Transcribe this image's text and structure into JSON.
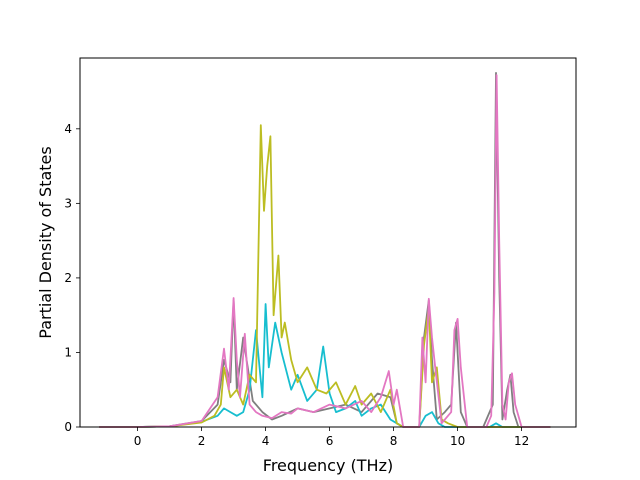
{
  "chart_data": {
    "type": "line",
    "title": "",
    "xlabel": "Frequency (THz)",
    "ylabel": "Partial Density of States",
    "xlim": [
      -1.8,
      13.7
    ],
    "ylim": [
      0,
      4.95
    ],
    "xticks": [
      0,
      2,
      4,
      6,
      8,
      10,
      12
    ],
    "yticks": [
      0,
      1,
      2,
      3,
      4
    ],
    "grid": false,
    "legend": "none",
    "series": [
      {
        "color": "#7f7f7f",
        "x": [
          -1.2,
          0,
          1.0,
          2.0,
          2.5,
          2.7,
          2.9,
          3.0,
          3.1,
          3.3,
          3.6,
          3.9,
          4.2,
          4.5,
          5.0,
          5.5,
          6.0,
          6.5,
          7.0,
          7.5,
          7.9,
          8.1,
          8.3,
          8.8,
          8.95,
          9.1,
          9.2,
          9.35,
          9.6,
          9.8,
          9.95,
          10.1,
          10.3,
          10.8,
          11.1,
          11.2,
          11.3,
          11.4,
          11.55,
          11.65,
          11.75,
          11.9,
          12.5,
          12.9
        ],
        "y": [
          0,
          0,
          0.01,
          0.08,
          0.3,
          0.9,
          0.6,
          1.7,
          0.5,
          1.2,
          0.35,
          0.2,
          0.1,
          0.15,
          0.25,
          0.2,
          0.25,
          0.3,
          0.2,
          0.45,
          0.4,
          0.05,
          0,
          0,
          1.2,
          1.7,
          0.9,
          0.1,
          0.2,
          0.3,
          1.4,
          0.2,
          0,
          0,
          0.3,
          4.75,
          2.0,
          0.1,
          0.5,
          0.7,
          0.2,
          0,
          0,
          0
        ]
      },
      {
        "color": "#17becf",
        "x": [
          -1.2,
          0,
          1.0,
          2.0,
          2.5,
          2.7,
          2.9,
          3.1,
          3.3,
          3.5,
          3.7,
          3.9,
          4.0,
          4.1,
          4.3,
          4.5,
          4.8,
          5.0,
          5.3,
          5.6,
          5.8,
          6.0,
          6.2,
          6.5,
          6.8,
          7.0,
          7.3,
          7.6,
          7.9,
          8.1,
          8.3,
          8.8,
          9.0,
          9.2,
          9.4,
          9.6,
          10.0,
          10.5,
          11.0,
          11.2,
          11.4,
          12.0,
          12.9
        ],
        "y": [
          0,
          0,
          0.01,
          0.07,
          0.15,
          0.25,
          0.2,
          0.15,
          0.2,
          0.5,
          1.3,
          0.4,
          1.65,
          0.8,
          1.4,
          1.0,
          0.5,
          0.7,
          0.35,
          0.5,
          1.08,
          0.45,
          0.2,
          0.25,
          0.35,
          0.15,
          0.25,
          0.3,
          0.1,
          0.05,
          0,
          0,
          0.15,
          0.2,
          0.05,
          0,
          0,
          0,
          0,
          0.05,
          0,
          0,
          0
        ]
      },
      {
        "color": "#bcbd22",
        "x": [
          -1.2,
          0,
          1.0,
          2.0,
          2.4,
          2.6,
          2.7,
          2.9,
          3.1,
          3.3,
          3.5,
          3.7,
          3.85,
          3.95,
          4.05,
          4.15,
          4.25,
          4.4,
          4.5,
          4.6,
          4.8,
          5.0,
          5.3,
          5.6,
          5.9,
          6.2,
          6.5,
          6.8,
          7.0,
          7.3,
          7.6,
          7.9,
          8.1,
          8.3,
          8.8,
          8.95,
          9.1,
          9.2,
          9.35,
          9.5,
          9.7,
          10.0,
          10.5,
          11.0,
          11.5,
          12.0,
          12.9
        ],
        "y": [
          0,
          0,
          0.01,
          0.06,
          0.15,
          0.3,
          0.8,
          0.4,
          0.5,
          0.3,
          0.7,
          0.6,
          4.05,
          2.9,
          3.5,
          3.9,
          1.5,
          2.3,
          1.2,
          1.4,
          0.9,
          0.6,
          0.8,
          0.5,
          0.45,
          0.6,
          0.3,
          0.55,
          0.3,
          0.45,
          0.2,
          0.5,
          0.05,
          0,
          0,
          1.1,
          1.6,
          0.6,
          0.8,
          0.1,
          0.05,
          0,
          0,
          0,
          0,
          0,
          0
        ]
      },
      {
        "color": "#e377c2",
        "x": [
          -1.2,
          0,
          1.0,
          2.0,
          2.5,
          2.7,
          2.85,
          3.0,
          3.1,
          3.2,
          3.35,
          3.5,
          3.7,
          3.9,
          4.2,
          4.5,
          4.8,
          5.0,
          5.5,
          6.0,
          6.5,
          7.0,
          7.3,
          7.6,
          7.85,
          8.0,
          8.1,
          8.3,
          8.8,
          8.9,
          9.0,
          9.1,
          9.2,
          9.3,
          9.5,
          9.8,
          9.9,
          10.0,
          10.1,
          10.3,
          10.9,
          11.05,
          11.15,
          11.22,
          11.3,
          11.4,
          11.5,
          11.6,
          11.7,
          11.8,
          12.0,
          12.9
        ],
        "y": [
          0,
          0,
          0.01,
          0.08,
          0.4,
          1.05,
          0.5,
          1.73,
          0.9,
          0.4,
          1.25,
          0.3,
          0.2,
          0.15,
          0.12,
          0.2,
          0.18,
          0.25,
          0.2,
          0.3,
          0.25,
          0.35,
          0.2,
          0.4,
          0.75,
          0.3,
          0.5,
          0,
          0,
          1.2,
          0.6,
          1.72,
          1.2,
          0.8,
          0.05,
          0.2,
          1.3,
          1.45,
          0.8,
          0,
          0,
          0.15,
          1.8,
          4.72,
          2.5,
          0.3,
          0.1,
          0.6,
          0.72,
          0.3,
          0,
          0
        ]
      }
    ]
  }
}
